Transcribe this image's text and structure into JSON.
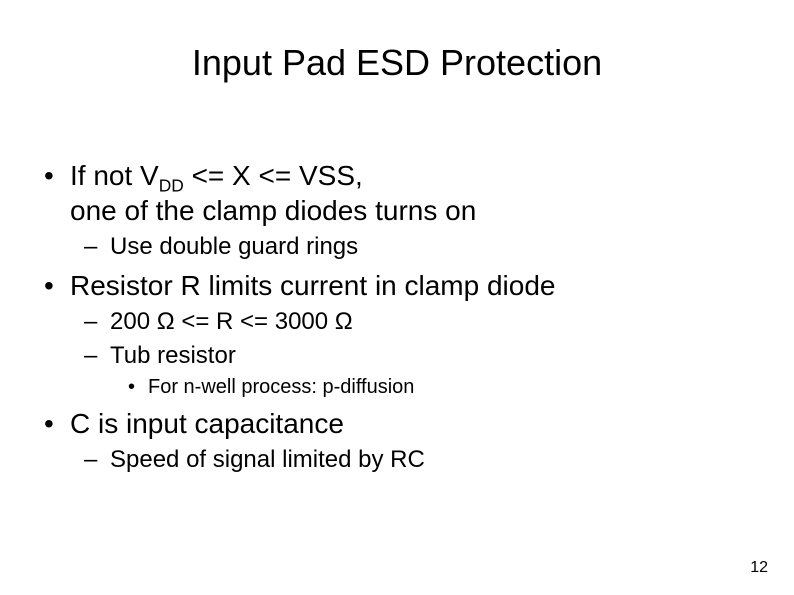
{
  "background_color": "#ffffff",
  "text_color": "#000000",
  "font_family": "Arial",
  "title": {
    "text": "Input Pad ESD Protection",
    "fontsize": 36
  },
  "bullets": {
    "b1_prefix": "If not V",
    "b1_sub": "DD",
    "b1_suffix": " <= X <= VSS,",
    "b1_cont": "one of the clamp diodes turns on",
    "b1_1": "Use double guard rings",
    "b2": "Resistor R limits current in clamp diode",
    "b2_1": "200 Ω <= R <= 3000 Ω",
    "b2_2": "Tub resistor",
    "b2_2_1": "For n-well process: p-diffusion",
    "b3": "C is input capacitance",
    "b3_1": "Speed of signal limited by RC"
  },
  "page_number": "12",
  "fontsizes": {
    "lvl1": 28,
    "lvl2": 24,
    "lvl3": 20,
    "pagenum": 16
  }
}
